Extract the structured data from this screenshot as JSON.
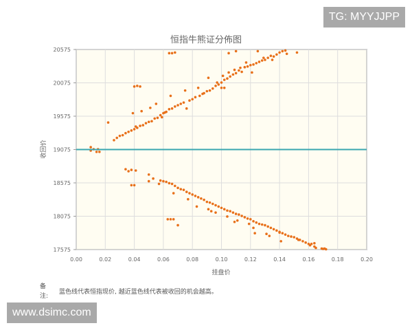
{
  "watermarks": {
    "top_right": "TG: MYYJJPP",
    "bottom_left": "www.dsimc.com"
  },
  "note": {
    "label": "备注:",
    "text": "蓝色线代表恒指现价, 越近蓝色线代表被收回的机会越高。"
  },
  "chart_data": {
    "type": "scatter",
    "title": "恒指牛熊证分佈图",
    "xlabel": "挂盘价",
    "ylabel": "收回价",
    "xlim": [
      0,
      0.2
    ],
    "ylim": [
      17575,
      20575
    ],
    "xticks": [
      "0.00",
      "0.02",
      "0.04",
      "0.06",
      "0.08",
      "0.10",
      "0.12",
      "0.14",
      "0.16",
      "0.18",
      "0.20"
    ],
    "yticks": [
      "17575",
      "18075",
      "18575",
      "19075",
      "19575",
      "20075",
      "20575"
    ],
    "grid": true,
    "reference_line": {
      "y": 19075,
      "color": "#3aa6b0"
    },
    "point_color": "#e8701a",
    "background": "#fffdf2",
    "series": [
      {
        "points": [
          [
            0.01,
            19110
          ],
          [
            0.01,
            19060
          ],
          [
            0.012,
            19080
          ],
          [
            0.014,
            19040
          ],
          [
            0.015,
            19080
          ],
          [
            0.016,
            19040
          ],
          [
            0.022,
            19480
          ],
          [
            0.026,
            19215
          ],
          [
            0.028,
            19250
          ],
          [
            0.03,
            19280
          ],
          [
            0.032,
            19290
          ],
          [
            0.034,
            19320
          ],
          [
            0.036,
            19340
          ],
          [
            0.038,
            19360
          ],
          [
            0.039,
            19620
          ],
          [
            0.04,
            19380
          ],
          [
            0.041,
            19420
          ],
          [
            0.042,
            19400
          ],
          [
            0.044,
            19430
          ],
          [
            0.045,
            19650
          ],
          [
            0.046,
            19440
          ],
          [
            0.048,
            19470
          ],
          [
            0.05,
            19490
          ],
          [
            0.051,
            19700
          ],
          [
            0.052,
            19500
          ],
          [
            0.054,
            19540
          ],
          [
            0.055,
            19760
          ],
          [
            0.056,
            19550
          ],
          [
            0.058,
            19590
          ],
          [
            0.059,
            19560
          ],
          [
            0.06,
            19620
          ],
          [
            0.061,
            19630
          ],
          [
            0.062,
            19640
          ],
          [
            0.064,
            19680
          ],
          [
            0.065,
            19880
          ],
          [
            0.066,
            19690
          ],
          [
            0.068,
            19720
          ],
          [
            0.07,
            19740
          ],
          [
            0.072,
            19760
          ],
          [
            0.074,
            19780
          ],
          [
            0.075,
            19960
          ],
          [
            0.076,
            19690
          ],
          [
            0.078,
            19810
          ],
          [
            0.08,
            19830
          ],
          [
            0.082,
            19860
          ],
          [
            0.084,
            20000
          ],
          [
            0.085,
            19880
          ],
          [
            0.087,
            19910
          ],
          [
            0.088,
            19920
          ],
          [
            0.09,
            19950
          ],
          [
            0.091,
            20150
          ],
          [
            0.092,
            19960
          ],
          [
            0.094,
            19990
          ],
          [
            0.096,
            20030
          ],
          [
            0.097,
            20080
          ],
          [
            0.098,
            20050
          ],
          [
            0.1,
            20080
          ],
          [
            0.101,
            20180
          ],
          [
            0.102,
            20120
          ],
          [
            0.104,
            20140
          ],
          [
            0.105,
            20230
          ],
          [
            0.106,
            20170
          ],
          [
            0.108,
            20200
          ],
          [
            0.109,
            20270
          ],
          [
            0.11,
            20220
          ],
          [
            0.112,
            20260
          ],
          [
            0.113,
            20300
          ],
          [
            0.114,
            20240
          ],
          [
            0.116,
            20310
          ],
          [
            0.117,
            20380
          ],
          [
            0.118,
            20320
          ],
          [
            0.12,
            20340
          ],
          [
            0.121,
            20230
          ],
          [
            0.122,
            20350
          ],
          [
            0.124,
            20370
          ],
          [
            0.125,
            20550
          ],
          [
            0.126,
            20390
          ],
          [
            0.128,
            20410
          ],
          [
            0.129,
            20450
          ],
          [
            0.13,
            20420
          ],
          [
            0.132,
            20450
          ],
          [
            0.134,
            20480
          ],
          [
            0.135,
            20420
          ],
          [
            0.136,
            20470
          ],
          [
            0.138,
            20500
          ],
          [
            0.14,
            20530
          ],
          [
            0.142,
            20550
          ],
          [
            0.144,
            20560
          ],
          [
            0.145,
            20510
          ],
          [
            0.152,
            20530
          ],
          [
            0.105,
            20520
          ],
          [
            0.11,
            20550
          ],
          [
            0.064,
            20520
          ],
          [
            0.066,
            20520
          ],
          [
            0.068,
            20530
          ],
          [
            0.04,
            20020
          ],
          [
            0.042,
            20030
          ],
          [
            0.044,
            20020
          ],
          [
            0.1,
            20000
          ],
          [
            0.102,
            20000
          ]
        ]
      },
      {
        "points": [
          [
            0.034,
            18780
          ],
          [
            0.036,
            18750
          ],
          [
            0.038,
            18770
          ],
          [
            0.041,
            18760
          ],
          [
            0.038,
            18540
          ],
          [
            0.04,
            18540
          ],
          [
            0.05,
            18700
          ],
          [
            0.05,
            18600
          ],
          [
            0.053,
            18640
          ],
          [
            0.057,
            18560
          ],
          [
            0.058,
            18610
          ],
          [
            0.06,
            18600
          ],
          [
            0.062,
            18590
          ],
          [
            0.064,
            18570
          ],
          [
            0.066,
            18560
          ],
          [
            0.067,
            18420
          ],
          [
            0.068,
            18530
          ],
          [
            0.07,
            18500
          ],
          [
            0.072,
            18480
          ],
          [
            0.074,
            18470
          ],
          [
            0.076,
            18440
          ],
          [
            0.077,
            18330
          ],
          [
            0.078,
            18420
          ],
          [
            0.08,
            18400
          ],
          [
            0.082,
            18380
          ],
          [
            0.083,
            18220
          ],
          [
            0.084,
            18360
          ],
          [
            0.086,
            18340
          ],
          [
            0.088,
            18320
          ],
          [
            0.09,
            18290
          ],
          [
            0.091,
            18180
          ],
          [
            0.092,
            18280
          ],
          [
            0.093,
            18150
          ],
          [
            0.094,
            18260
          ],
          [
            0.096,
            18240
          ],
          [
            0.096,
            18130
          ],
          [
            0.098,
            18220
          ],
          [
            0.1,
            18200
          ],
          [
            0.102,
            18180
          ],
          [
            0.104,
            18160
          ],
          [
            0.104,
            18070
          ],
          [
            0.106,
            18150
          ],
          [
            0.108,
            18130
          ],
          [
            0.109,
            17990
          ],
          [
            0.11,
            18110
          ],
          [
            0.111,
            18010
          ],
          [
            0.112,
            18100
          ],
          [
            0.114,
            18080
          ],
          [
            0.116,
            18060
          ],
          [
            0.118,
            18040
          ],
          [
            0.119,
            17960
          ],
          [
            0.12,
            18030
          ],
          [
            0.122,
            18000
          ],
          [
            0.122,
            17900
          ],
          [
            0.123,
            17820
          ],
          [
            0.124,
            17980
          ],
          [
            0.126,
            17960
          ],
          [
            0.128,
            17950
          ],
          [
            0.13,
            17940
          ],
          [
            0.131,
            17810
          ],
          [
            0.132,
            17920
          ],
          [
            0.133,
            17780
          ],
          [
            0.134,
            17900
          ],
          [
            0.136,
            17880
          ],
          [
            0.138,
            17860
          ],
          [
            0.14,
            17840
          ],
          [
            0.14,
            17830
          ],
          [
            0.141,
            17700
          ],
          [
            0.142,
            17820
          ],
          [
            0.144,
            17800
          ],
          [
            0.146,
            17780
          ],
          [
            0.148,
            17770
          ],
          [
            0.15,
            17760
          ],
          [
            0.152,
            17740
          ],
          [
            0.153,
            17720
          ],
          [
            0.154,
            17720
          ],
          [
            0.156,
            17700
          ],
          [
            0.158,
            17680
          ],
          [
            0.16,
            17660
          ],
          [
            0.161,
            17640
          ],
          [
            0.162,
            17660
          ],
          [
            0.164,
            17620
          ],
          [
            0.164,
            17670
          ],
          [
            0.165,
            17600
          ],
          [
            0.169,
            17590
          ],
          [
            0.17,
            17585
          ],
          [
            0.171,
            17590
          ],
          [
            0.172,
            17580
          ],
          [
            0.063,
            18030
          ],
          [
            0.065,
            18030
          ],
          [
            0.067,
            18030
          ],
          [
            0.07,
            17940
          ]
        ]
      }
    ]
  }
}
